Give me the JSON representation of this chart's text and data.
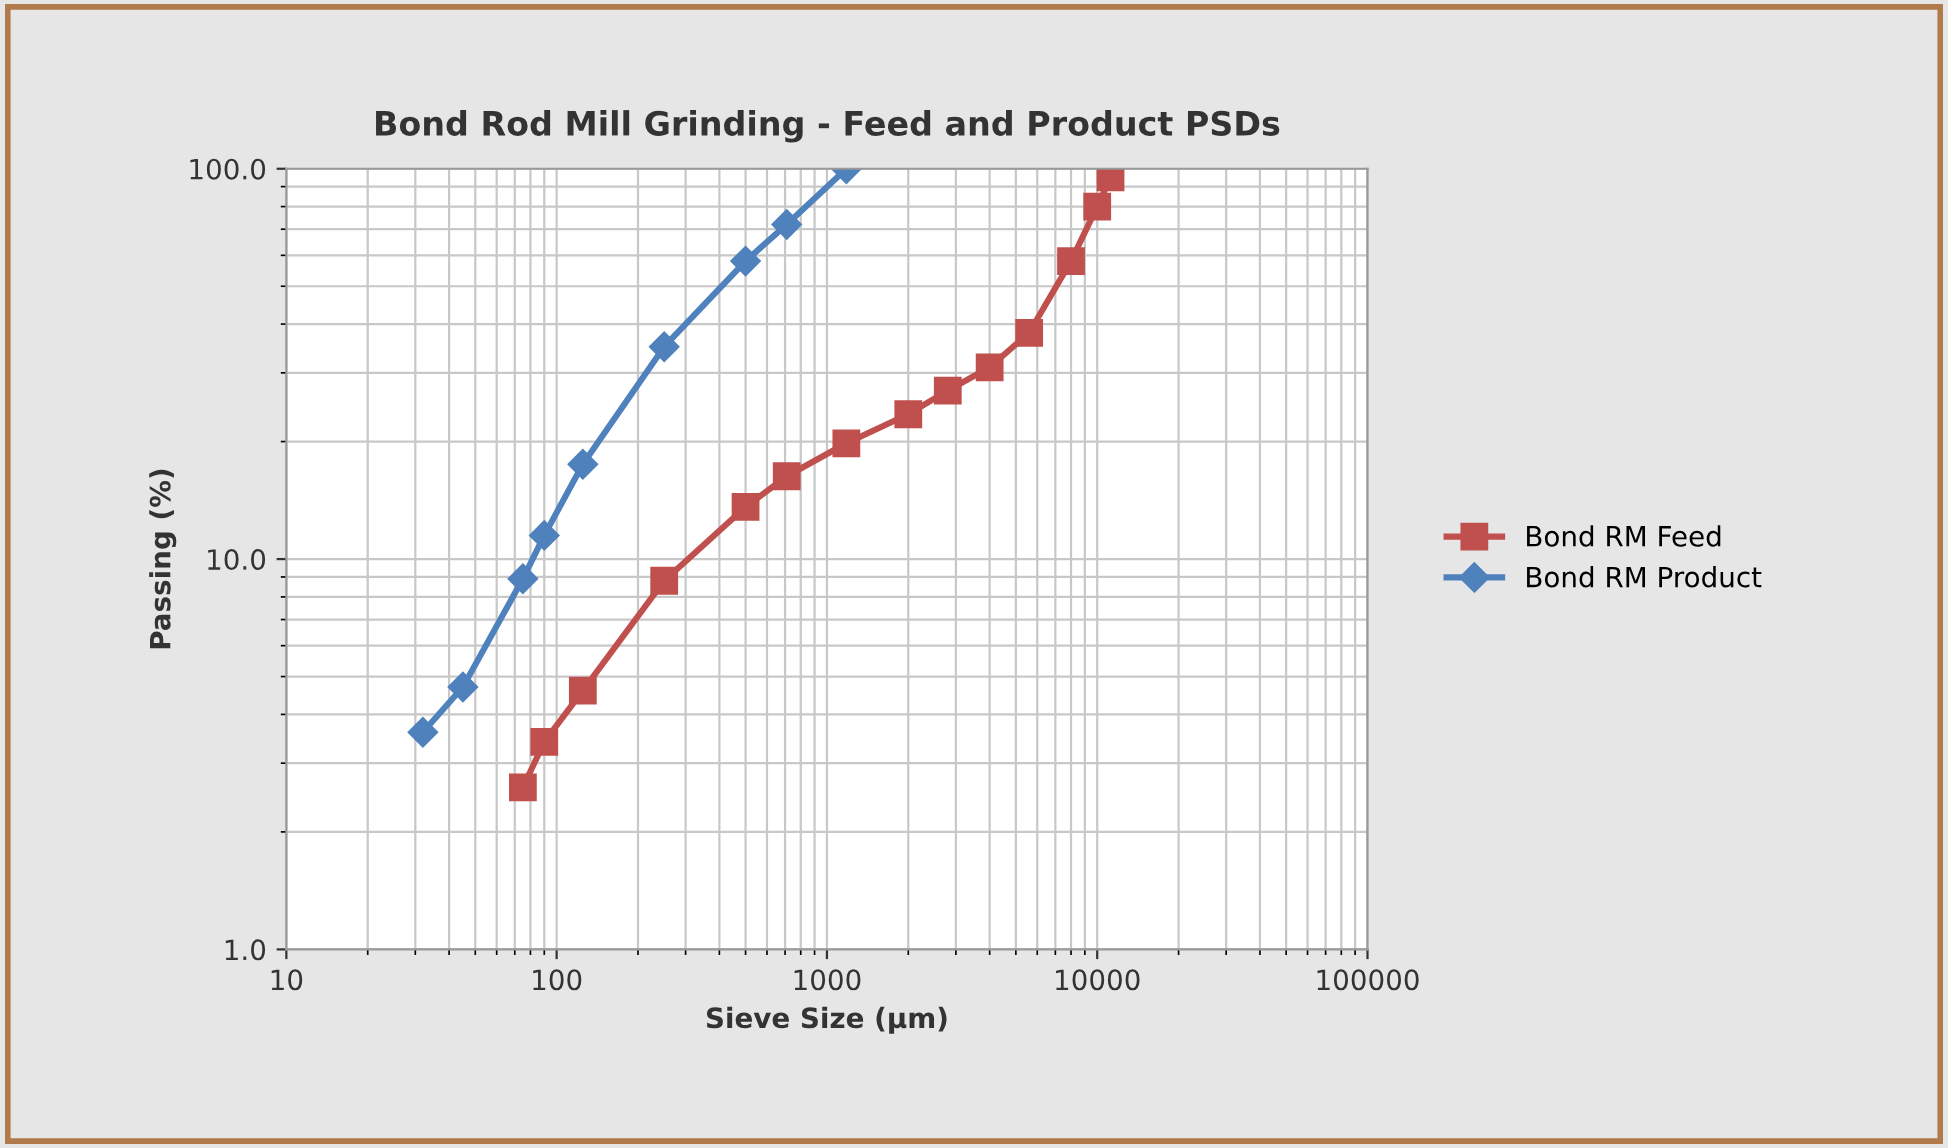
{
  "chart_data": {
    "type": "line",
    "title": "Bond Rod Mill Grinding - Feed and Product PSDs",
    "xlabel": "Sieve Size (µm)",
    "ylabel": "Passing (%)",
    "log": "xy",
    "xlim": [
      10,
      100000
    ],
    "ylim": [
      1,
      100
    ],
    "xticks": [
      10,
      100,
      1000,
      10000,
      100000
    ],
    "yticks": [
      {
        "value": 1,
        "label": "1.0"
      },
      {
        "value": 10,
        "label": "10.0"
      },
      {
        "value": 100,
        "label": "100.0"
      }
    ],
    "grid": true,
    "legend": "right",
    "series": [
      {
        "name": "Bond RM Feed",
        "color": "#c0504d",
        "marker": "square",
        "x": [
          75,
          90,
          125,
          250,
          500,
          710,
          1180,
          2000,
          2800,
          4000,
          5600,
          8000,
          10000,
          11200
        ],
        "values": [
          2.6,
          3.4,
          4.6,
          8.8,
          13.6,
          16.3,
          19.8,
          23.5,
          27,
          31,
          38,
          58,
          80,
          95
        ]
      },
      {
        "name": "Bond RM Product",
        "color": "#4f81bd",
        "marker": "diamond",
        "x": [
          32,
          45,
          75,
          90,
          125,
          250,
          500,
          710,
          1180
        ],
        "values": [
          3.6,
          4.7,
          8.9,
          11.5,
          17.5,
          35,
          58,
          72,
          100
        ]
      }
    ]
  }
}
